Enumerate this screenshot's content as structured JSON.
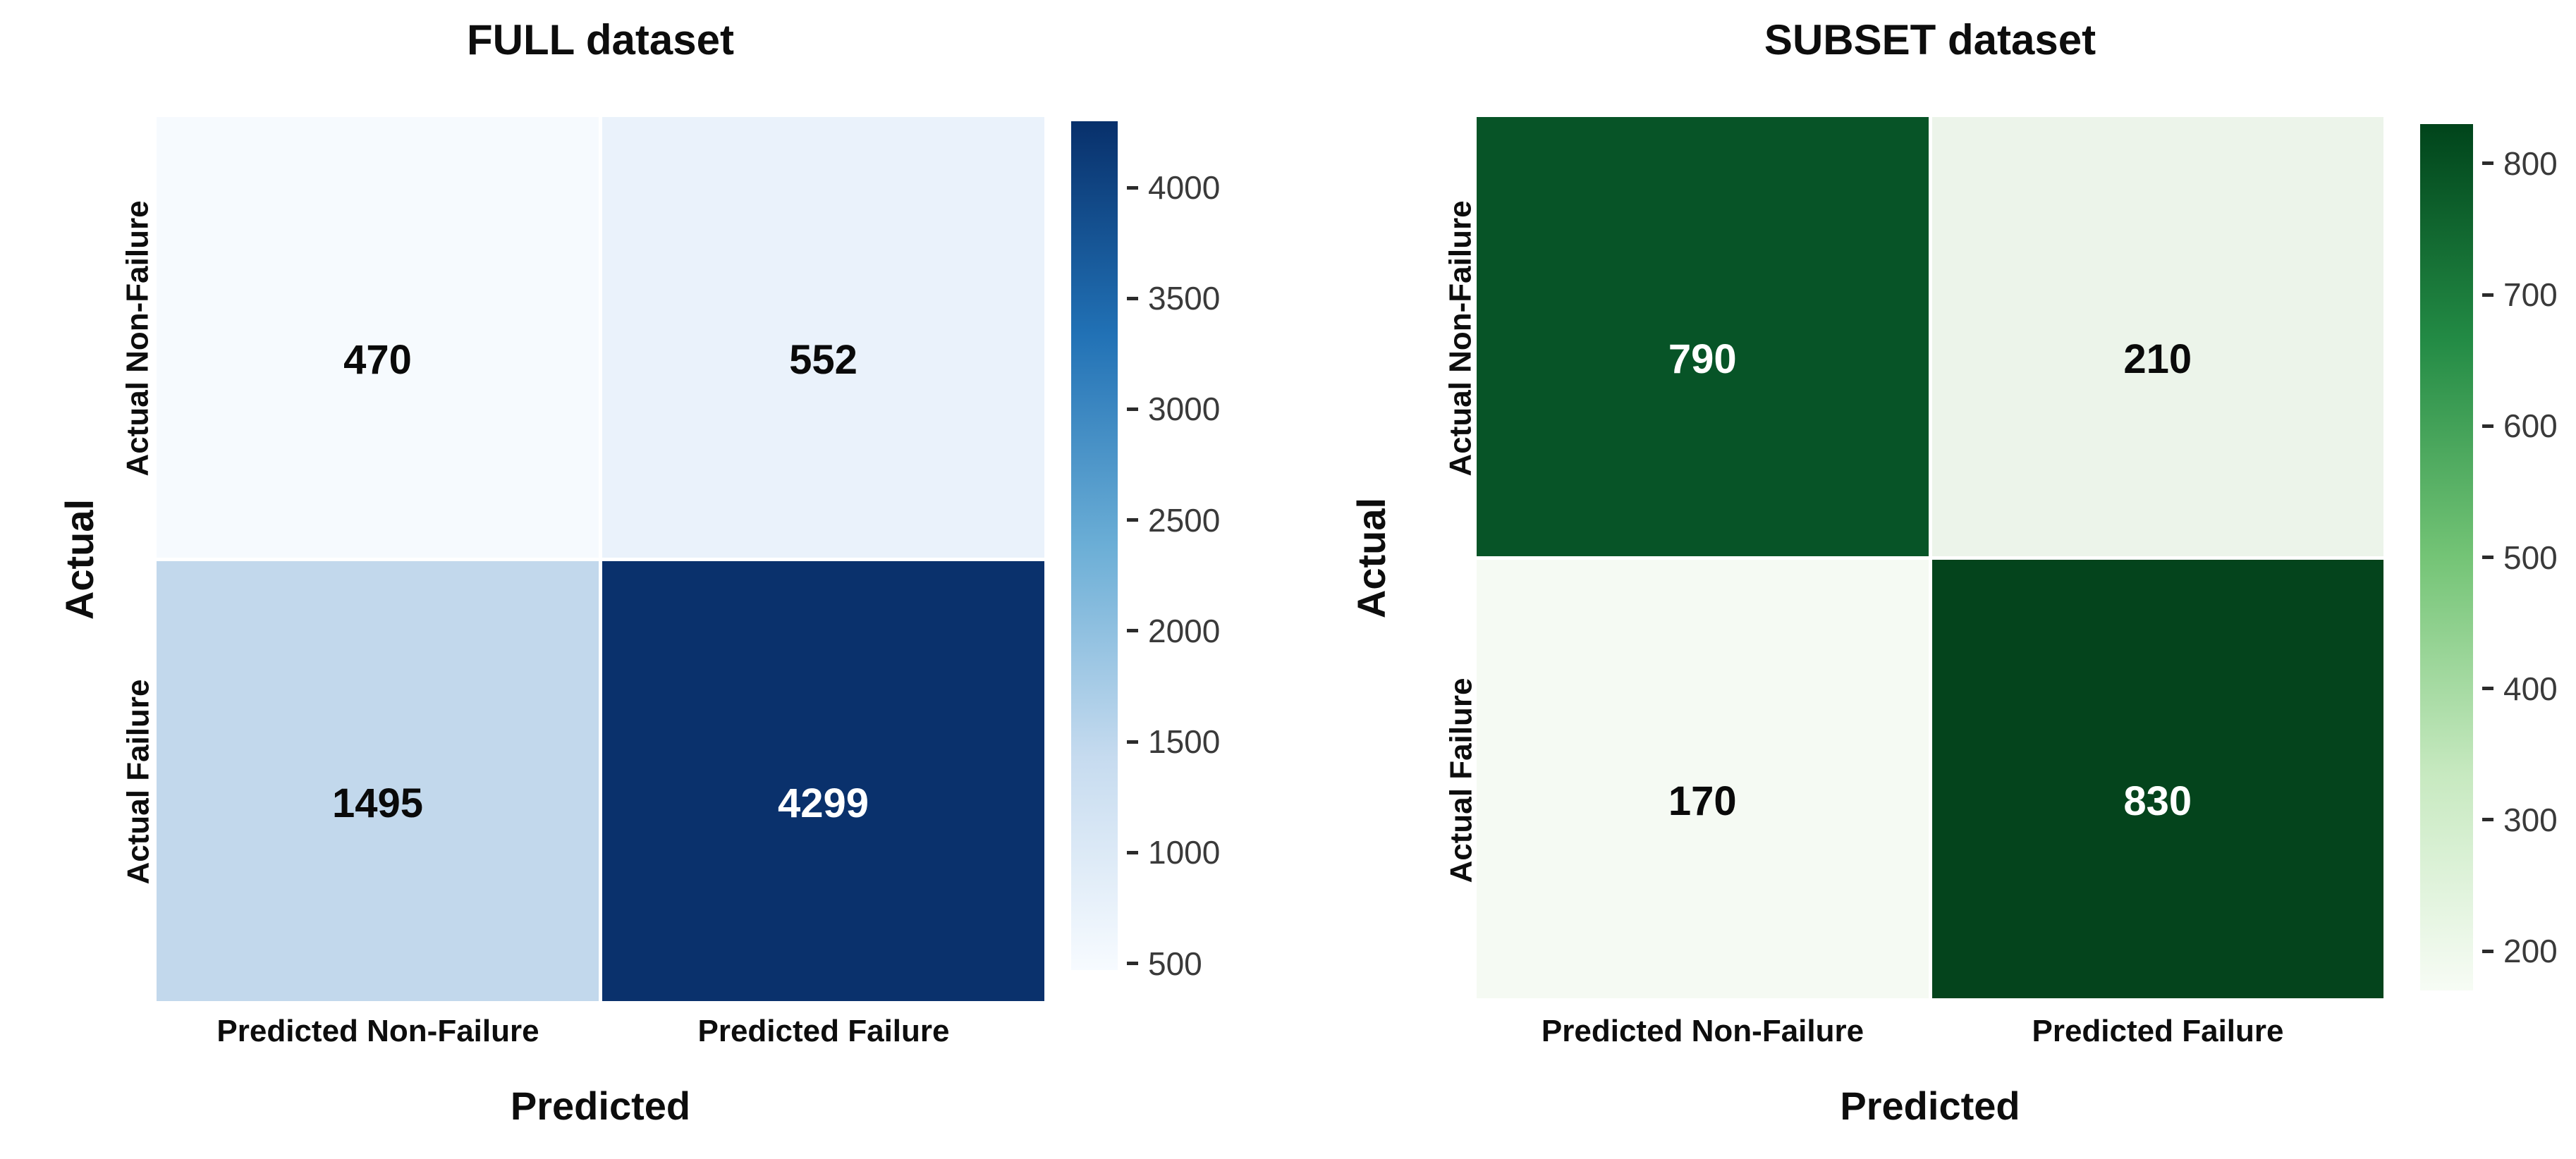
{
  "charts": [
    {
      "title": "FULL dataset",
      "xlabel": "Predicted",
      "ylabel": "Actual",
      "x_ticks": [
        "Predicted Non-Failure",
        "Predicted Failure"
      ],
      "y_ticks": [
        "Actual Non-Failure",
        "Actual Failure"
      ],
      "cells": [
        {
          "value": "470",
          "bg": "#f6fafe",
          "fg": "#0a0a0a"
        },
        {
          "value": "552",
          "bg": "#eaf2fb",
          "fg": "#0a0a0a"
        },
        {
          "value": "1495",
          "bg": "#c2d8ec",
          "fg": "#0a0a0a"
        },
        {
          "value": "4299",
          "bg": "#0a316c",
          "fg": "#ffffff"
        }
      ],
      "colorbar": {
        "vmin": 470,
        "vmax": 4299,
        "ticks": [
          4000,
          3500,
          3000,
          2500,
          2000,
          1500,
          1000,
          500
        ],
        "stops": [
          "#08306b",
          "#2171b5",
          "#6baed6",
          "#c6dbef",
          "#f7fbff"
        ]
      }
    },
    {
      "title": "SUBSET dataset",
      "xlabel": "Predicted",
      "ylabel": "Actual",
      "x_ticks": [
        "Predicted Non-Failure",
        "Predicted Failure"
      ],
      "y_ticks": [
        "Actual Non-Failure",
        "Actual Failure"
      ],
      "cells": [
        {
          "value": "790",
          "bg": "#075427",
          "fg": "#ffffff"
        },
        {
          "value": "210",
          "bg": "#ecf4ea",
          "fg": "#0a0a0a"
        },
        {
          "value": "170",
          "bg": "#f5faf3",
          "fg": "#0a0a0a"
        },
        {
          "value": "830",
          "bg": "#04441c",
          "fg": "#ffffff"
        }
      ],
      "colorbar": {
        "vmin": 170,
        "vmax": 830,
        "ticks": [
          800,
          700,
          600,
          500,
          400,
          300,
          200
        ],
        "stops": [
          "#00441b",
          "#238b45",
          "#74c476",
          "#c7e9c0",
          "#f7fcf5"
        ]
      }
    }
  ],
  "chart_data": [
    {
      "type": "heatmap",
      "title": "FULL dataset",
      "xlabel": "Predicted",
      "ylabel": "Actual",
      "x_categories": [
        "Predicted Non-Failure",
        "Predicted Failure"
      ],
      "y_categories": [
        "Actual Non-Failure",
        "Actual Failure"
      ],
      "values": [
        [
          470,
          552
        ],
        [
          1495,
          4299
        ]
      ],
      "annotations": [
        [
          "470",
          "552"
        ],
        [
          "1495",
          "4299"
        ]
      ],
      "colormap": "Blues",
      "colorbar_range": [
        470,
        4299
      ],
      "colorbar_ticks": [
        500,
        1000,
        1500,
        2000,
        2500,
        3000,
        3500,
        4000
      ],
      "legend_position": "right",
      "grid": false
    },
    {
      "type": "heatmap",
      "title": "SUBSET dataset",
      "xlabel": "Predicted",
      "ylabel": "Actual",
      "x_categories": [
        "Predicted Non-Failure",
        "Predicted Failure"
      ],
      "y_categories": [
        "Actual Non-Failure",
        "Actual Failure"
      ],
      "values": [
        [
          790,
          210
        ],
        [
          170,
          830
        ]
      ],
      "annotations": [
        [
          "790",
          "210"
        ],
        [
          "170",
          "830"
        ]
      ],
      "colormap": "Greens",
      "colorbar_range": [
        170,
        830
      ],
      "colorbar_ticks": [
        200,
        300,
        400,
        500,
        600,
        700,
        800
      ],
      "legend_position": "right",
      "grid": false
    }
  ]
}
